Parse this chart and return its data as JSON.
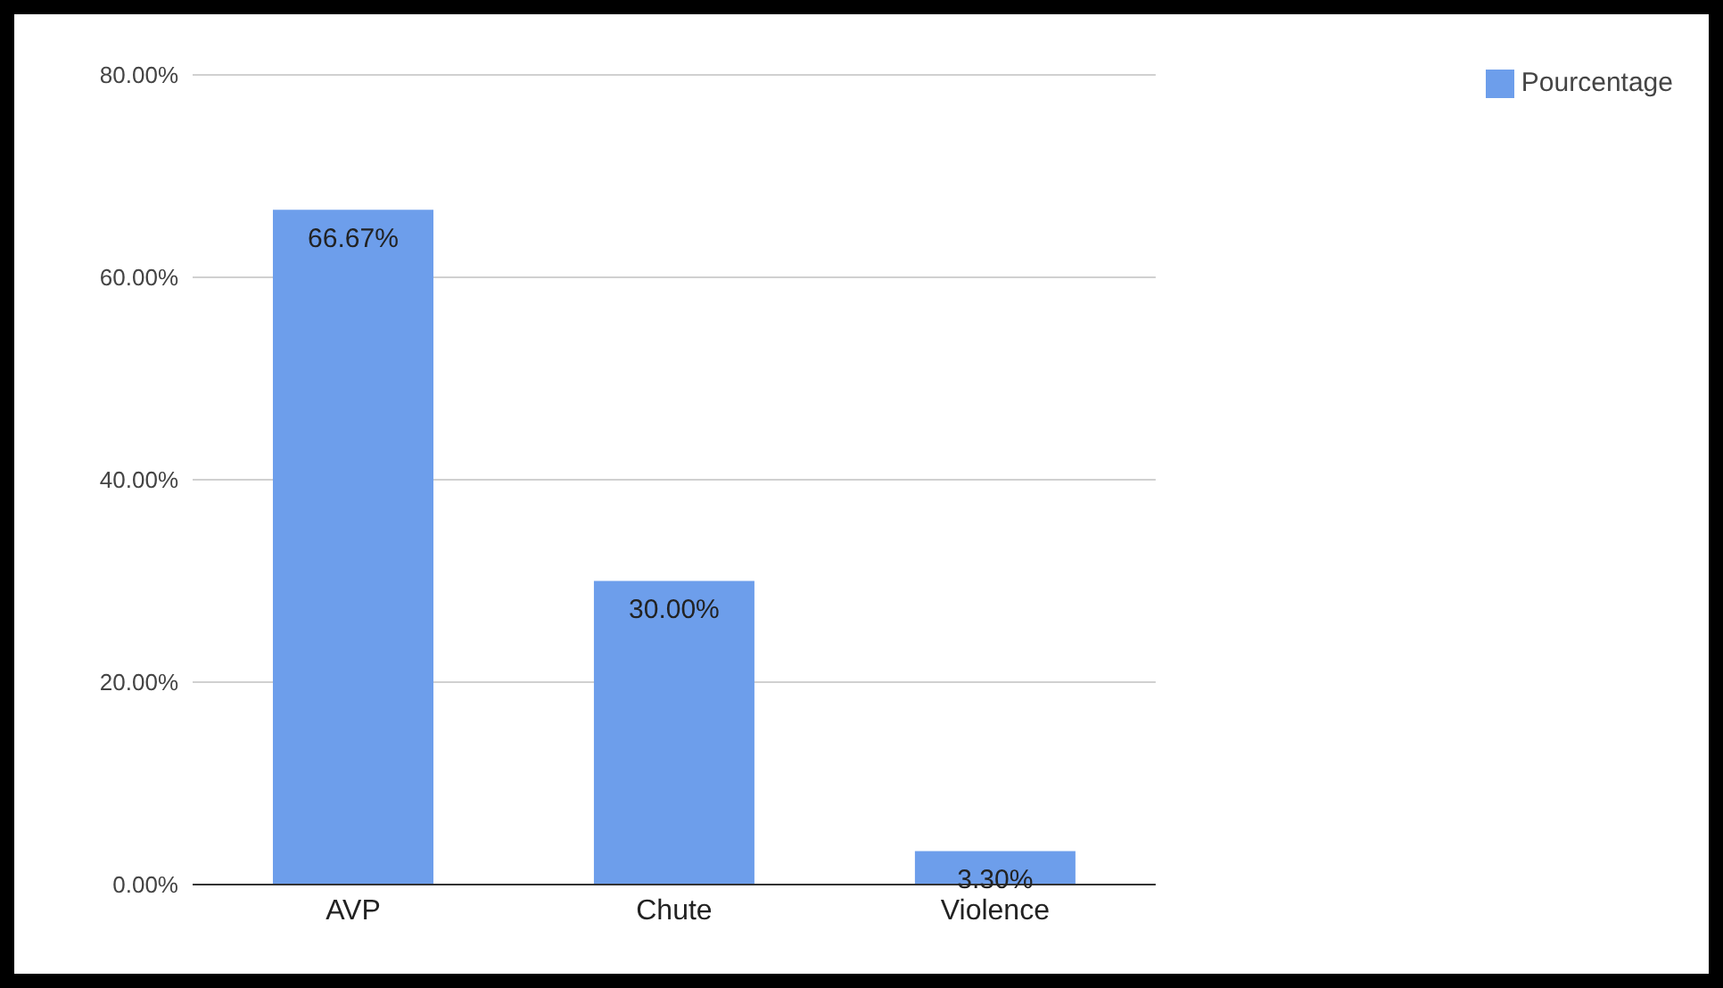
{
  "chart_data": {
    "type": "bar",
    "categories": [
      "AVP",
      "Chute",
      "Violence"
    ],
    "series": [
      {
        "name": "Pourcentage",
        "color": "#6d9eeb",
        "values": [
          66.67,
          30,
          3.3
        ],
        "value_labels": [
          "66.67%",
          "30.00%",
          "3.30%"
        ]
      }
    ],
    "ylim": [
      0,
      80
    ],
    "yticks": [
      {
        "value": 0,
        "label": "0.00%"
      },
      {
        "value": 20,
        "label": "20.00%"
      },
      {
        "value": 40,
        "label": "40.00%"
      },
      {
        "value": 60,
        "label": "60.00%"
      },
      {
        "value": 80,
        "label": "80.00%"
      }
    ],
    "grid": "y",
    "legend": "top right"
  }
}
